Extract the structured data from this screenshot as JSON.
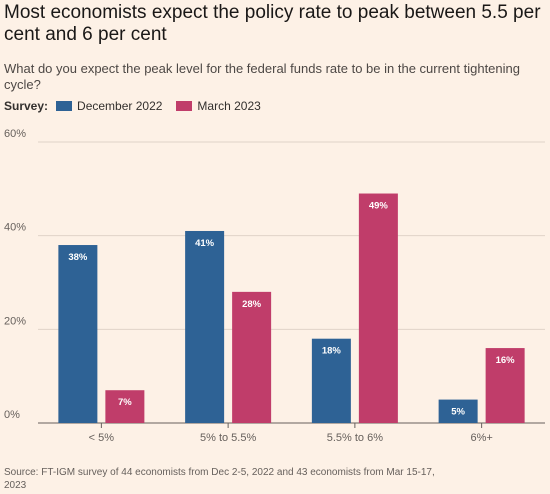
{
  "title": "Most economists expect the policy rate to peak between 5.5 per cent and 6 per cent",
  "subtitle": "What do you expect the peak level for the federal funds rate to be in the current tightening cycle?",
  "legend": {
    "label": "Survey:"
  },
  "source": "Source: FT-IGM survey of 44 economists from Dec 2-5, 2022 and 43 economists from Mar 15-17, 2023",
  "chart_data": {
    "type": "bar",
    "categories": [
      "< 5%",
      "5% to 5.5%",
      "5.5% to 6%",
      "6%+"
    ],
    "series": [
      {
        "name": "December 2022",
        "color": "#2e6295",
        "values": [
          38,
          41,
          18,
          5
        ]
      },
      {
        "name": "March 2023",
        "color": "#c03d6a",
        "values": [
          7,
          28,
          49,
          16
        ]
      }
    ],
    "yticks": [
      "0%",
      "20%",
      "40%",
      "60%"
    ],
    "ylim": [
      0,
      60
    ],
    "grid": true,
    "legend_position": "top-left",
    "value_suffix": "%"
  }
}
